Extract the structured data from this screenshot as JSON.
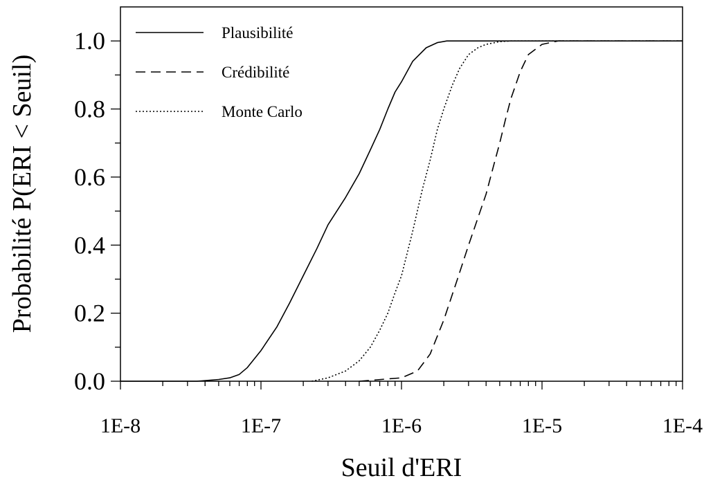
{
  "chart_data": {
    "type": "line",
    "title": "",
    "xlabel": "Seuil d'ERI",
    "ylabel": "Probabilité P(ERI < Seuil)",
    "x_scale": "log",
    "xlim": [
      1e-08,
      0.0001
    ],
    "ylim": [
      0,
      1.1
    ],
    "grid": false,
    "legend_position": "top-left",
    "x_tick_labels": [
      "1E-8",
      "1E-7",
      "1E-6",
      "1E-5",
      "1E-4"
    ],
    "x_tick_values": [
      1e-08,
      1e-07,
      1e-06,
      1e-05,
      0.0001
    ],
    "y_tick_labels": [
      "0.0",
      "0.2",
      "0.4",
      "0.6",
      "0.8",
      "1.0"
    ],
    "y_tick_values": [
      0,
      0.2,
      0.4,
      0.6,
      0.8,
      1.0
    ],
    "series": [
      {
        "name": "Plausibilité",
        "style": "solid",
        "x": [
          3.5e-08,
          5e-08,
          6e-08,
          7e-08,
          8e-08,
          1e-07,
          1.3e-07,
          1.6e-07,
          2e-07,
          2.5e-07,
          3e-07,
          4e-07,
          5e-07,
          6e-07,
          7e-07,
          8e-07,
          9e-07,
          1e-06,
          1.2e-06,
          1.5e-06,
          1.8e-06,
          2.1e-06,
          0.0001
        ],
        "y": [
          0.0,
          0.005,
          0.01,
          0.02,
          0.04,
          0.09,
          0.16,
          0.23,
          0.31,
          0.39,
          0.46,
          0.54,
          0.61,
          0.68,
          0.74,
          0.8,
          0.85,
          0.88,
          0.94,
          0.98,
          0.995,
          1.0,
          1.0
        ]
      },
      {
        "name": "Crédibilité",
        "style": "dashed",
        "x": [
          5e-07,
          1e-06,
          1.3e-06,
          1.6e-06,
          2e-06,
          2.5e-06,
          3e-06,
          3.5e-06,
          4e-06,
          4.5e-06,
          5e-06,
          5.5e-06,
          6e-06,
          7e-06,
          8e-06,
          1e-05,
          1.3e-05,
          0.0001
        ],
        "y": [
          0.0,
          0.01,
          0.03,
          0.08,
          0.18,
          0.3,
          0.4,
          0.48,
          0.55,
          0.63,
          0.7,
          0.77,
          0.83,
          0.91,
          0.96,
          0.99,
          1.0,
          1.0
        ]
      },
      {
        "name": "Monte Carlo",
        "style": "dotted",
        "x": [
          2.3e-07,
          3e-07,
          4e-07,
          5e-07,
          6e-07,
          7e-07,
          8e-07,
          9e-07,
          1e-06,
          1.2e-06,
          1.4e-06,
          1.6e-06,
          1.8e-06,
          2e-06,
          2.3e-06,
          2.6e-06,
          3e-06,
          3.5e-06,
          4e-06,
          5e-06,
          6e-06,
          0.0001
        ],
        "y": [
          0.0,
          0.01,
          0.03,
          0.06,
          0.1,
          0.15,
          0.2,
          0.26,
          0.31,
          0.44,
          0.56,
          0.65,
          0.74,
          0.8,
          0.87,
          0.92,
          0.96,
          0.98,
          0.99,
          0.998,
          1.0,
          1.0
        ]
      }
    ]
  }
}
